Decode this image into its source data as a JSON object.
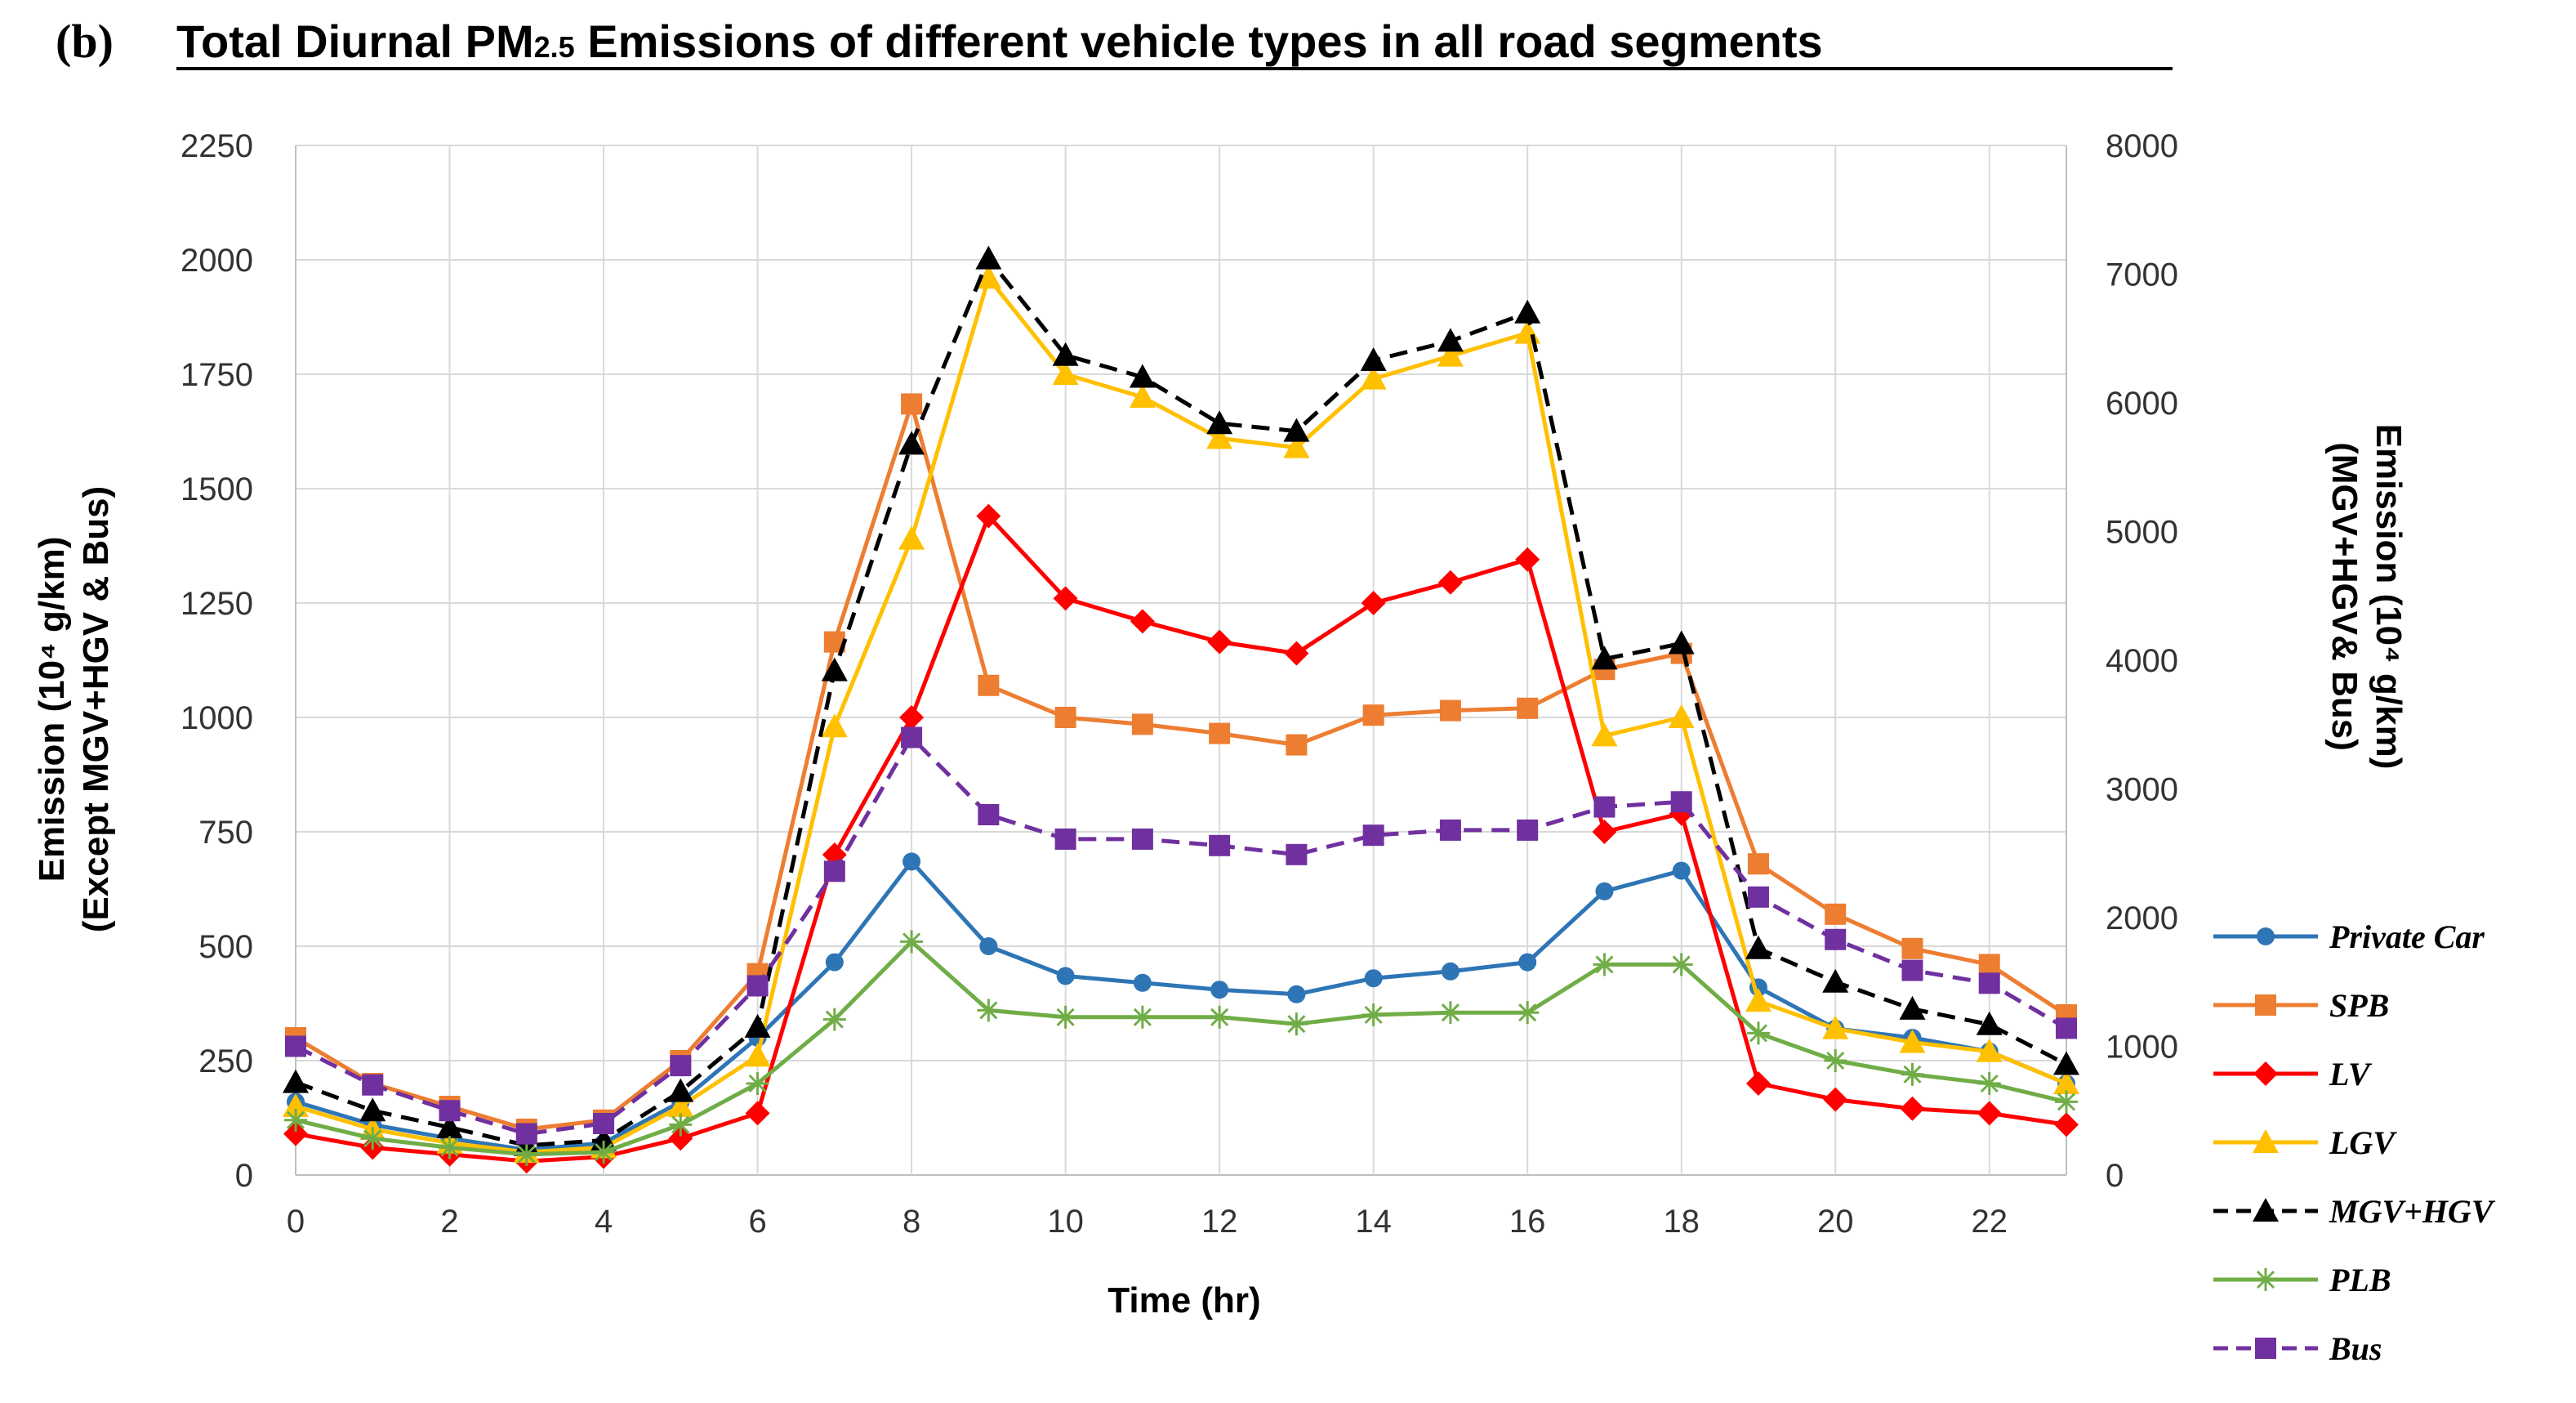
{
  "panel_label": "(b)",
  "title_parts": [
    "Total Diurnal PM",
    "2.5",
    " Emissions of different vehicle types in all road segments"
  ],
  "chart_data": {
    "type": "line",
    "title": "Total Diurnal PM2.5 Emissions of different vehicle types in all road segments",
    "xlabel": "Time (hr)",
    "ylabel_left": [
      "Emission (10⁴ g/km)",
      "(Except MGV+HGV & Bus)"
    ],
    "ylabel_right": [
      "Emission (10⁴ g/km)",
      "(MGV+HGV& Bus)"
    ],
    "x": [
      0,
      1,
      2,
      3,
      4,
      5,
      6,
      7,
      8,
      9,
      10,
      11,
      12,
      13,
      14,
      15,
      16,
      17,
      18,
      19,
      20,
      21,
      22,
      23
    ],
    "xticks": [
      "0",
      "2",
      "4",
      "6",
      "8",
      "10",
      "12",
      "14",
      "16",
      "18",
      "20",
      "22"
    ],
    "ylim_left": [
      0,
      2250
    ],
    "yticks_left": [
      "0",
      "250",
      "500",
      "750",
      "1000",
      "1250",
      "1500",
      "1750",
      "2000",
      "2250"
    ],
    "ylim_right": [
      0,
      8000
    ],
    "yticks_right": [
      "0",
      "1000",
      "2000",
      "3000",
      "4000",
      "5000",
      "6000",
      "7000",
      "8000"
    ],
    "grid": true,
    "legend_position": "right",
    "series": [
      {
        "name": "Private Car",
        "axis": "left",
        "color": "#2e75b6",
        "marker": "circle",
        "dash": false,
        "values": [
          160,
          110,
          80,
          55,
          70,
          160,
          300,
          465,
          685,
          500,
          435,
          420,
          405,
          395,
          430,
          445,
          465,
          620,
          665,
          410,
          320,
          300,
          270,
          200
        ]
      },
      {
        "name": "SPB",
        "axis": "left",
        "color": "#ed7d31",
        "marker": "square",
        "dash": false,
        "values": [
          300,
          200,
          150,
          100,
          120,
          250,
          440,
          1165,
          1685,
          1070,
          1000,
          985,
          965,
          940,
          1005,
          1015,
          1020,
          1105,
          1140,
          680,
          570,
          495,
          460,
          350
        ]
      },
      {
        "name": "LV",
        "axis": "left",
        "color": "#ff0000",
        "marker": "diamond",
        "dash": false,
        "values": [
          90,
          60,
          45,
          30,
          40,
          80,
          135,
          700,
          1000,
          1440,
          1260,
          1210,
          1165,
          1140,
          1250,
          1295,
          1345,
          750,
          790,
          200,
          165,
          145,
          135,
          110
        ]
      },
      {
        "name": "LGV",
        "axis": "left",
        "color": "#ffc000",
        "marker": "triangle",
        "dash": false,
        "values": [
          150,
          100,
          70,
          50,
          60,
          150,
          260,
          980,
          1390,
          1960,
          1750,
          1700,
          1610,
          1590,
          1740,
          1790,
          1840,
          960,
          1000,
          380,
          320,
          290,
          270,
          200
        ]
      },
      {
        "name": "MGV+HGV",
        "axis": "right",
        "color": "#000000",
        "marker": "triangle",
        "dash": true,
        "values": [
          720,
          500,
          370,
          230,
          270,
          650,
          1150,
          3920,
          5680,
          7120,
          6370,
          6200,
          5840,
          5780,
          6330,
          6480,
          6700,
          4010,
          4130,
          1760,
          1500,
          1290,
          1170,
          860
        ]
      },
      {
        "name": "PLB",
        "axis": "left",
        "color": "#70ad47",
        "marker": "star",
        "dash": false,
        "values": [
          120,
          80,
          60,
          45,
          50,
          110,
          200,
          340,
          510,
          360,
          345,
          345,
          345,
          330,
          350,
          355,
          355,
          460,
          460,
          310,
          250,
          220,
          200,
          160
        ]
      },
      {
        "name": "Bus",
        "axis": "right",
        "color": "#7030a0",
        "marker": "square",
        "dash": true,
        "values": [
          1000,
          700,
          500,
          320,
          400,
          850,
          1470,
          2360,
          3400,
          2800,
          2610,
          2610,
          2560,
          2490,
          2640,
          2680,
          2680,
          2860,
          2900,
          2160,
          1830,
          1590,
          1490,
          1140
        ]
      }
    ]
  }
}
